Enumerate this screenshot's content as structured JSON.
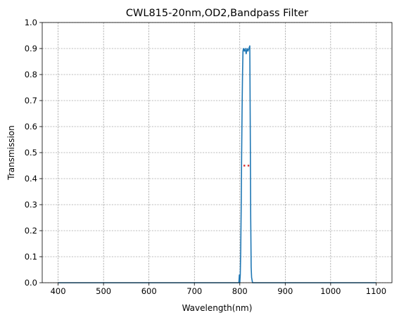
{
  "chart_data": {
    "type": "line",
    "title": "CWL815-20nm,OD2,Bandpass Filter",
    "xlabel": "Wavelength(nm)",
    "ylabel": "Transmission",
    "xlim": [
      365,
      1135
    ],
    "ylim": [
      0,
      1.0
    ],
    "xticks": [
      400,
      500,
      600,
      700,
      800,
      900,
      1000,
      1100
    ],
    "yticks": [
      0.0,
      0.1,
      0.2,
      0.3,
      0.4,
      0.5,
      0.6,
      0.7,
      0.8,
      0.9,
      1.0
    ],
    "grid": true,
    "series": [
      {
        "color": "#1f77b4",
        "x": [
          400,
          500,
          600,
          700,
          790,
          798,
          799,
          800,
          801,
          802,
          803,
          804,
          805,
          806,
          807,
          808,
          810,
          812,
          814,
          816,
          818,
          820,
          822,
          823,
          824,
          825,
          826,
          827,
          828,
          830,
          850,
          900,
          1000,
          1100
        ],
        "y": [
          0.0,
          0.0,
          0.0,
          0.0,
          0.0,
          0.0,
          0.03,
          0.0,
          0.03,
          0.12,
          0.28,
          0.48,
          0.66,
          0.8,
          0.89,
          0.9,
          0.89,
          0.9,
          0.88,
          0.9,
          0.89,
          0.9,
          0.91,
          0.6,
          0.25,
          0.06,
          0.02,
          0.01,
          0.0,
          0.0,
          0.0,
          0.0,
          0.0,
          0.0
        ]
      }
    ],
    "markers": {
      "color": "#d62728",
      "x": [
        810,
        819
      ],
      "y": [
        0.45,
        0.45
      ]
    }
  }
}
